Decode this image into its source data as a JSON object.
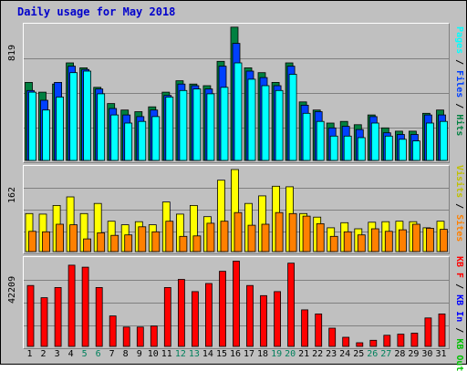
{
  "title": "Daily usage for May 2018",
  "colors": {
    "background": "#c0c0c0",
    "title": "#0000cc",
    "hits": "#008040",
    "files": "#0040ff",
    "pages": "#00ffff",
    "visits": "#ffff00",
    "sites": "#ff8000",
    "kbytes": "#ff0000",
    "kb_in": "#0000ff",
    "kb_out": "#00c000",
    "weekend": "#00805c",
    "weekday": "#000000"
  },
  "panels": {
    "top": {
      "max_label": "819",
      "legend": [
        "Pages",
        "Files",
        "Hits"
      ]
    },
    "middle": {
      "max_label": "162",
      "legend": [
        "Visits",
        "Sites"
      ]
    },
    "bottom": {
      "max_label": "42209",
      "legend": [
        "KB F",
        "KB In",
        "KB Out"
      ]
    }
  },
  "chart_data": [
    {
      "type": "bar",
      "name": "hits-files-pages",
      "categories": [
        "1",
        "2",
        "3",
        "4",
        "5",
        "6",
        "7",
        "8",
        "9",
        "10",
        "11",
        "12",
        "13",
        "14",
        "15",
        "16",
        "17",
        "18",
        "19",
        "20",
        "21",
        "22",
        "23",
        "24",
        "25",
        "26",
        "27",
        "28",
        "29",
        "30",
        "31"
      ],
      "ylim": [
        0,
        819
      ],
      "series": [
        {
          "name": "Hits",
          "values": [
            480,
            420,
            470,
            600,
            570,
            450,
            350,
            310,
            300,
            330,
            420,
            490,
            470,
            460,
            610,
            820,
            570,
            540,
            480,
            600,
            360,
            310,
            230,
            240,
            220,
            280,
            200,
            180,
            180,
            290,
            310
          ]
        },
        {
          "name": "Files",
          "values": [
            430,
            370,
            480,
            580,
            560,
            440,
            320,
            280,
            270,
            310,
            400,
            470,
            460,
            440,
            580,
            720,
            550,
            510,
            460,
            580,
            340,
            300,
            200,
            210,
            190,
            270,
            170,
            160,
            160,
            280,
            280
          ]
        },
        {
          "name": "Pages",
          "values": [
            420,
            310,
            390,
            540,
            550,
            410,
            280,
            230,
            240,
            270,
            390,
            430,
            440,
            410,
            450,
            600,
            500,
            460,
            430,
            530,
            290,
            240,
            150,
            150,
            140,
            230,
            150,
            130,
            120,
            230,
            240
          ]
        }
      ]
    },
    {
      "type": "bar",
      "name": "visits-sites",
      "categories": [
        "1",
        "2",
        "3",
        "4",
        "5",
        "6",
        "7",
        "8",
        "9",
        "10",
        "11",
        "12",
        "13",
        "14",
        "15",
        "16",
        "17",
        "18",
        "19",
        "20",
        "21",
        "22",
        "23",
        "24",
        "25",
        "26",
        "27",
        "28",
        "29",
        "30",
        "31"
      ],
      "ylim": [
        0,
        162
      ],
      "series": [
        {
          "name": "Visits",
          "values": [
            75,
            74,
            91,
            108,
            75,
            95,
            60,
            53,
            59,
            53,
            98,
            74,
            91,
            69,
            141,
            162,
            95,
            110,
            129,
            128,
            75,
            68,
            47,
            57,
            45,
            58,
            59,
            60,
            59,
            47,
            60
          ]
        },
        {
          "name": "Sites",
          "values": [
            40,
            39,
            54,
            53,
            25,
            37,
            32,
            33,
            49,
            39,
            60,
            30,
            31,
            56,
            60,
            77,
            52,
            54,
            77,
            75,
            70,
            55,
            30,
            39,
            33,
            45,
            40,
            43,
            54,
            46,
            44
          ]
        }
      ]
    },
    {
      "type": "bar",
      "name": "kbytes",
      "categories": [
        "1",
        "2",
        "3",
        "4",
        "5",
        "6",
        "7",
        "8",
        "9",
        "10",
        "11",
        "12",
        "13",
        "14",
        "15",
        "16",
        "17",
        "18",
        "19",
        "20",
        "21",
        "22",
        "23",
        "24",
        "25",
        "26",
        "27",
        "28",
        "29",
        "30",
        "31"
      ],
      "ylim": [
        0,
        42209
      ],
      "series": [
        {
          "name": "KB F",
          "values": [
            30000,
            24000,
            29000,
            40000,
            39000,
            29000,
            15000,
            9500,
            9500,
            10000,
            29000,
            33000,
            27000,
            31000,
            37000,
            42000,
            30000,
            25000,
            27000,
            41000,
            18000,
            16000,
            9000,
            4500,
            1800,
            3000,
            5500,
            6000,
            6500,
            14000,
            16000
          ]
        }
      ]
    }
  ],
  "x_labels": [
    "1",
    "2",
    "3",
    "4",
    "5",
    "6",
    "7",
    "8",
    "9",
    "10",
    "11",
    "12",
    "13",
    "14",
    "15",
    "16",
    "17",
    "18",
    "19",
    "20",
    "21",
    "22",
    "23",
    "24",
    "25",
    "26",
    "27",
    "28",
    "29",
    "30",
    "31"
  ],
  "weekend_days": [
    5,
    6,
    12,
    13,
    19,
    20,
    26,
    27
  ]
}
